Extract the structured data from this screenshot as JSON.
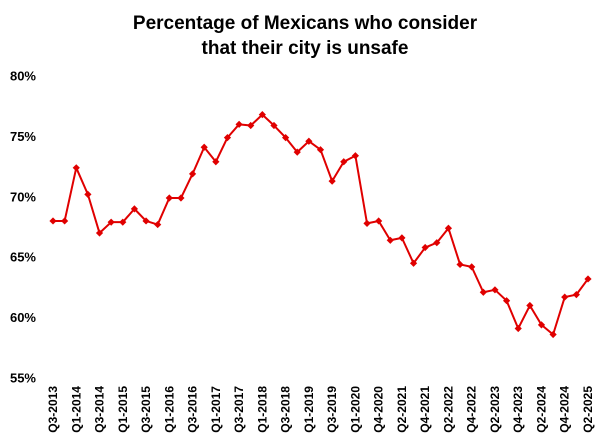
{
  "chart_data": {
    "type": "line",
    "title_lines": [
      "Percentage of Mexicans who consider",
      "that their city is unsafe"
    ],
    "xlabel": "",
    "ylabel": "",
    "ylim": [
      55,
      80
    ],
    "yticks": [
      55,
      60,
      65,
      70,
      75,
      80
    ],
    "ytick_labels": [
      "55%",
      "60%",
      "65%",
      "70%",
      "75%",
      "80%"
    ],
    "x_tick_labels": [
      "Q3-2013",
      "Q1-2014",
      "Q3-2014",
      "Q1-2015",
      "Q3-2015",
      "Q1-2016",
      "Q3-2016",
      "Q1-2017",
      "Q3-2017",
      "Q1-2018",
      "Q3-2018",
      "Q1-2019",
      "Q3-2019",
      "Q1-2020",
      "Q4-2020",
      "Q2-2021",
      "Q4-2021",
      "Q2-2022",
      "Q4-2022",
      "Q2-2023",
      "Q4-2023",
      "Q2-2024",
      "Q4-2024",
      "Q2-2025"
    ],
    "x_tick_positions": [
      0,
      2,
      4,
      6,
      8,
      10,
      12,
      14,
      16,
      18,
      20,
      22,
      24,
      26,
      28,
      30,
      32,
      34,
      36,
      38,
      40,
      42,
      44,
      46
    ],
    "color": "#e00000",
    "grid": false,
    "series": [
      {
        "name": "Percentage who consider their city unsafe",
        "values": [
          68.0,
          68.0,
          72.4,
          70.2,
          67.0,
          67.9,
          67.9,
          69.0,
          68.0,
          67.7,
          69.9,
          69.9,
          71.9,
          74.1,
          72.9,
          74.9,
          76.0,
          75.9,
          76.8,
          75.9,
          74.9,
          73.7,
          74.6,
          73.9,
          71.3,
          72.9,
          73.4,
          67.8,
          68.0,
          66.4,
          66.6,
          64.5,
          65.8,
          66.2,
          67.4,
          64.4,
          64.2,
          62.1,
          62.3,
          61.4,
          59.1,
          61.0,
          59.4,
          58.6,
          61.7,
          61.9,
          63.2
        ]
      }
    ]
  }
}
